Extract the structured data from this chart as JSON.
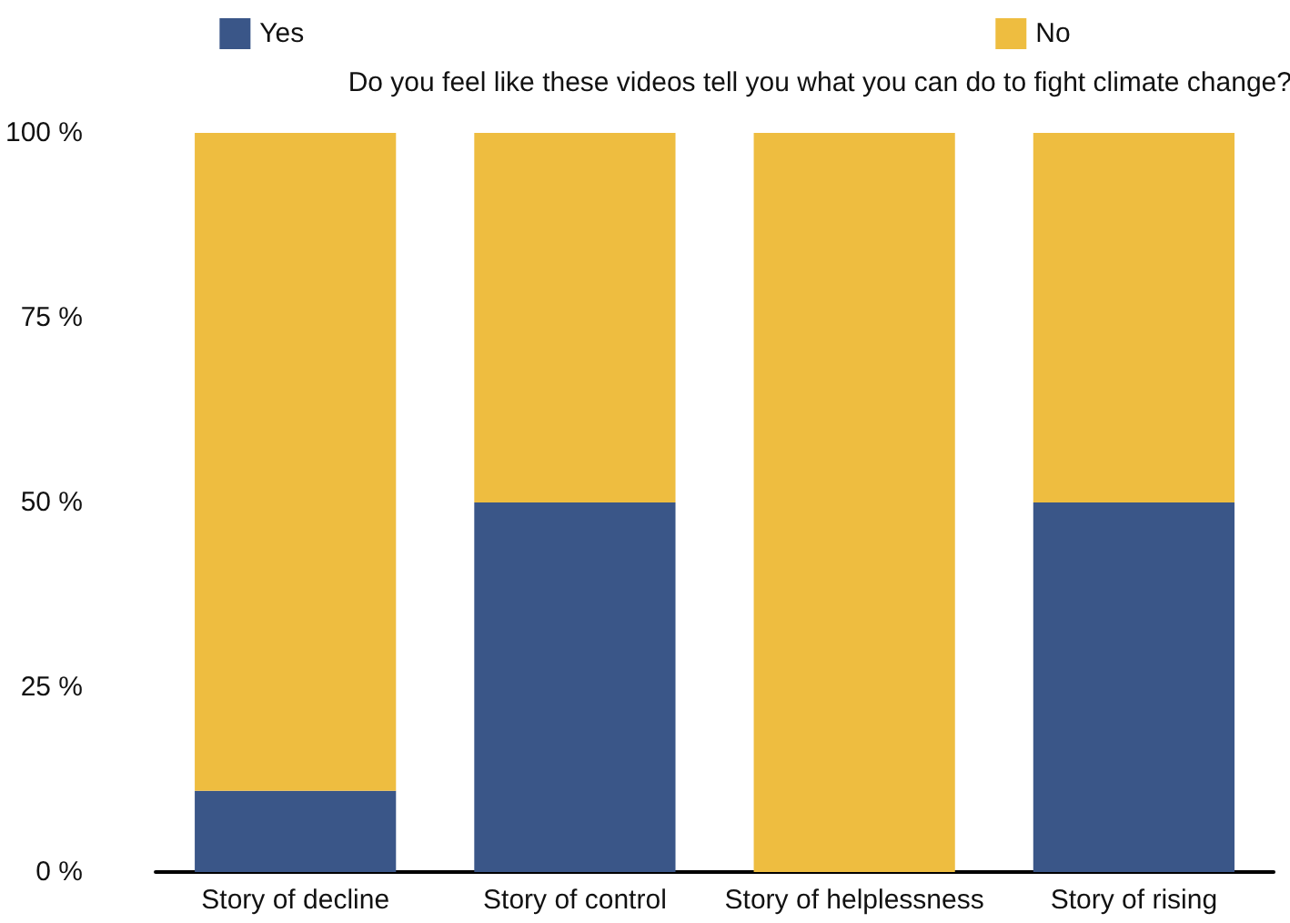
{
  "chart_data": {
    "type": "bar",
    "stacked": true,
    "title": "Do you feel like these videos tell you what you can do to fight climate change?",
    "categories": [
      "Story of decline",
      "Story of control",
      "Story of helplessness",
      "Story of rising"
    ],
    "series": [
      {
        "name": "Yes",
        "color": "#3a5688",
        "values": [
          11,
          50,
          0,
          50
        ]
      },
      {
        "name": "No",
        "color": "#eebd40",
        "values": [
          89,
          50,
          100,
          50
        ]
      }
    ],
    "ylim": [
      0,
      100
    ],
    "yticks": [
      {
        "value": 0,
        "label": "0 %"
      },
      {
        "value": 25,
        "label": "25 %"
      },
      {
        "value": 50,
        "label": "50 %"
      },
      {
        "value": 75,
        "label": "75 %"
      },
      {
        "value": 100,
        "label": "100 %"
      }
    ],
    "grid": false,
    "legend": "top"
  }
}
